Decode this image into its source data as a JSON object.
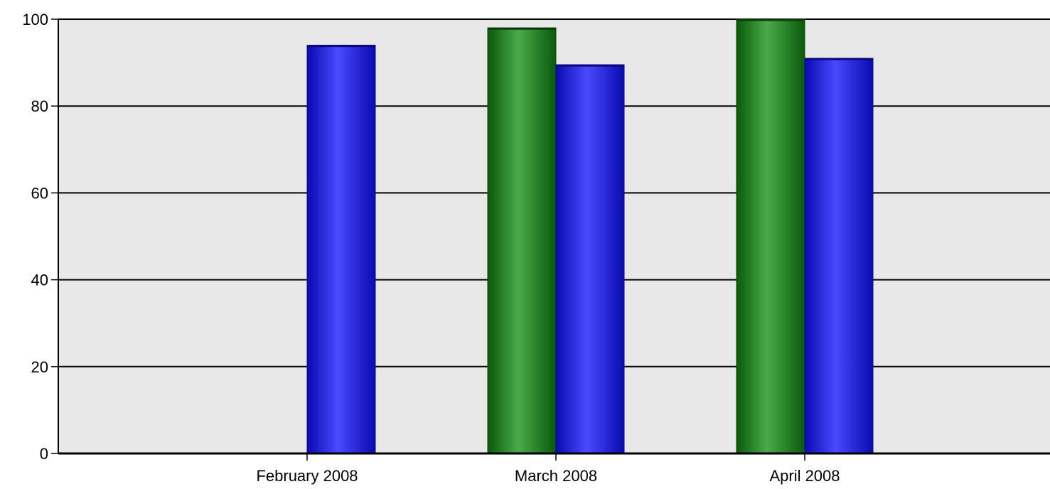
{
  "chart_data": {
    "type": "bar",
    "title": "",
    "xlabel": "",
    "ylabel": "",
    "categories": [
      "February 2008",
      "March 2008",
      "April 2008"
    ],
    "series": [
      {
        "color": "#1a7a1a",
        "values": [
          null,
          98,
          100
        ]
      },
      {
        "color": "#2626e0",
        "values": [
          94,
          89.5,
          91
        ]
      }
    ],
    "ylim": [
      0,
      100
    ],
    "yticks": [
      "0",
      "20",
      "40",
      "60",
      "80",
      "100"
    ],
    "grid": true,
    "legend": "none",
    "plot_background": "#e8e8e8"
  }
}
